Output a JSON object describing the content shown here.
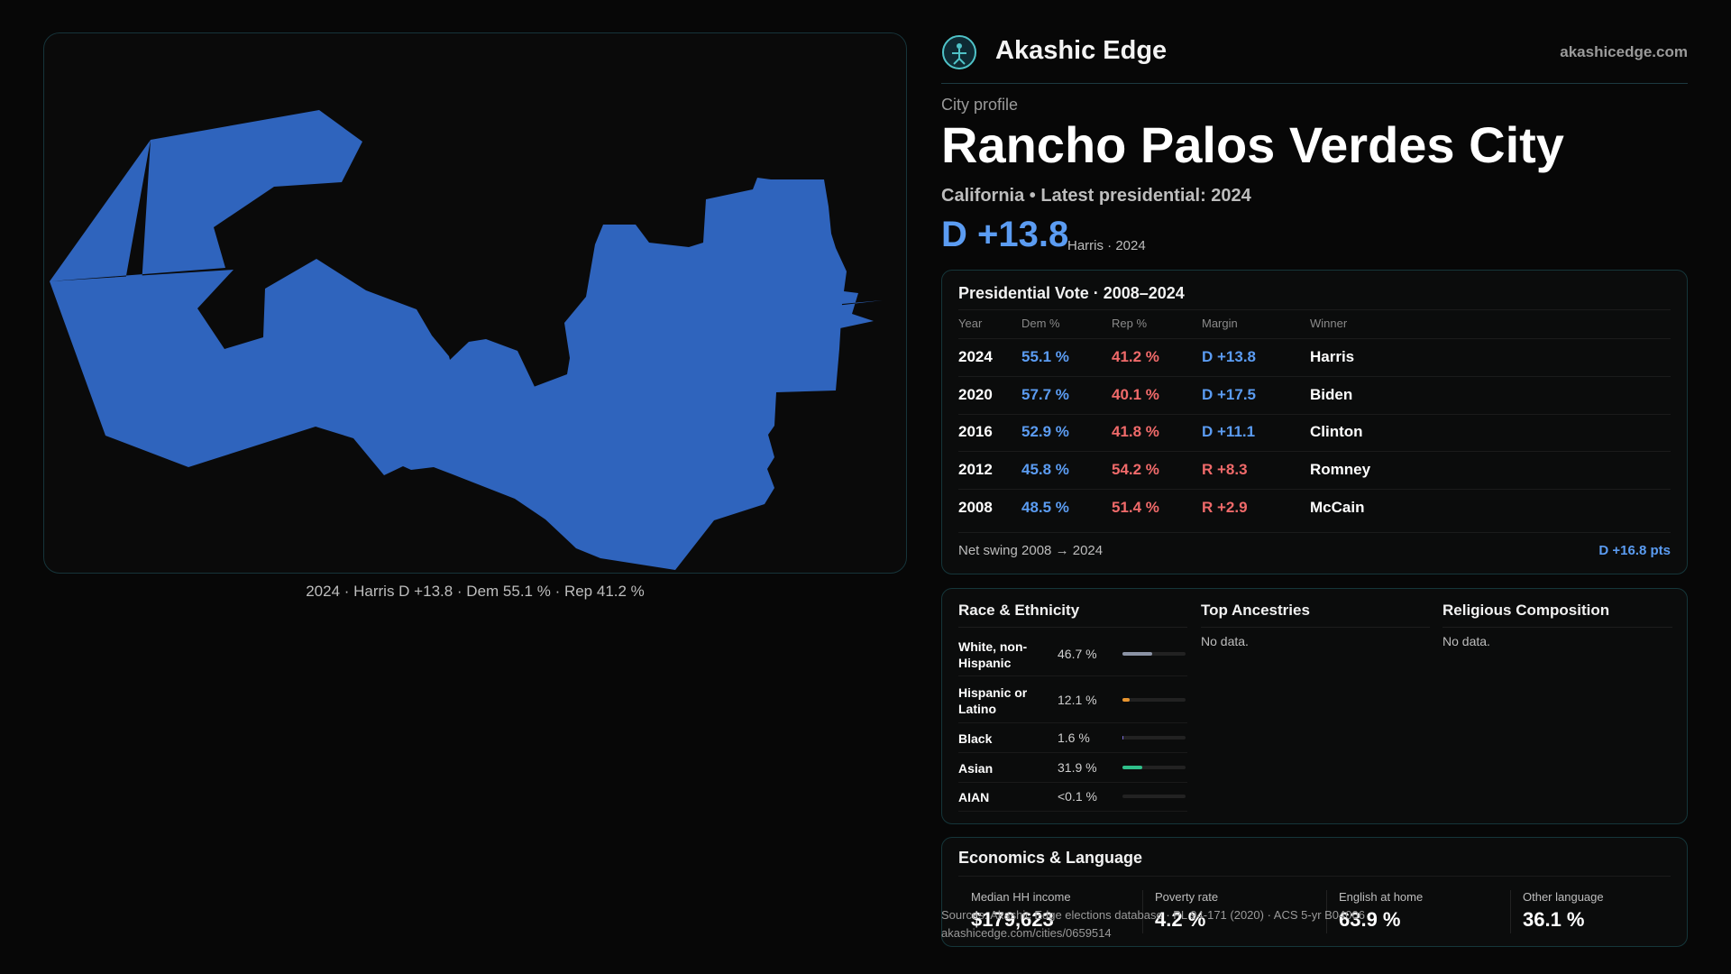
{
  "map": {
    "fill_color": "#2f64bd",
    "caption": "2024 · Harris D +13.8 · Dem 55.1 % · Rep 41.2 %"
  },
  "header": {
    "brand": "Akashic Edge",
    "domain": "akashicedge.com",
    "logo_icon": "globe-figure-icon"
  },
  "profile": {
    "kicker": "City profile",
    "title": "Rancho Palos Verdes City",
    "subtitle": "California • Latest presidential: 2024",
    "margin": "D +13.8",
    "margin_note": "Harris · 2024"
  },
  "votes": {
    "title": "Presidential Vote · 2008–2024",
    "headers": {
      "year": "Year",
      "dem": "Dem %",
      "rep": "Rep %",
      "margin": "Margin",
      "winner": "Winner"
    },
    "rows": [
      {
        "year": "2024",
        "dem": "55.1 %",
        "rep": "41.2 %",
        "margin": "D +13.8",
        "winner": "Harris"
      },
      {
        "year": "2020",
        "dem": "57.7 %",
        "rep": "40.1 %",
        "margin": "D +17.5",
        "winner": "Biden"
      },
      {
        "year": "2016",
        "dem": "52.9 %",
        "rep": "41.8 %",
        "margin": "D +11.1",
        "winner": "Clinton"
      },
      {
        "year": "2012",
        "dem": "45.8 %",
        "rep": "54.2 %",
        "margin": "R +8.3",
        "winner": "Romney"
      },
      {
        "year": "2008",
        "dem": "48.5 %",
        "rep": "51.4 %",
        "margin": "R +2.9",
        "winner": "McCain"
      }
    ],
    "swing_label": "Net swing 2008 → 2024",
    "swing_value": "D +16.8 pts"
  },
  "race": {
    "title": "Race & Ethnicity",
    "rows": [
      {
        "label": "White, non-Hispanic",
        "value": "46.7 %",
        "pct": 46.7,
        "color": "#8b93a5"
      },
      {
        "label": "Hispanic or Latino",
        "value": "12.1 %",
        "pct": 12.1,
        "color": "#e8952f"
      },
      {
        "label": "Black",
        "value": "1.6 %",
        "pct": 1.6,
        "color": "#7b6cd9"
      },
      {
        "label": "Asian",
        "value": "31.9 %",
        "pct": 31.9,
        "color": "#2fbf8a"
      },
      {
        "label": "AIAN",
        "value": "<0.1 %",
        "pct": 0,
        "color": "#888888"
      }
    ]
  },
  "ancestries": {
    "title": "Top Ancestries",
    "empty": "No data."
  },
  "religion": {
    "title": "Religious Composition",
    "empty": "No data."
  },
  "economics": {
    "title": "Economics & Language",
    "items": [
      {
        "label": "Median HH income",
        "value": "$179,623"
      },
      {
        "label": "Poverty rate",
        "value": "4.2 %"
      },
      {
        "label": "English at home",
        "value": "63.9 %"
      },
      {
        "label": "Other language",
        "value": "36.1 %"
      }
    ]
  },
  "footer": {
    "sources": "Sources: Akashic Edge elections database · PL 94-171 (2020) · ACS 5-yr B04006",
    "url": "akashicedge.com/cities/0659514"
  }
}
